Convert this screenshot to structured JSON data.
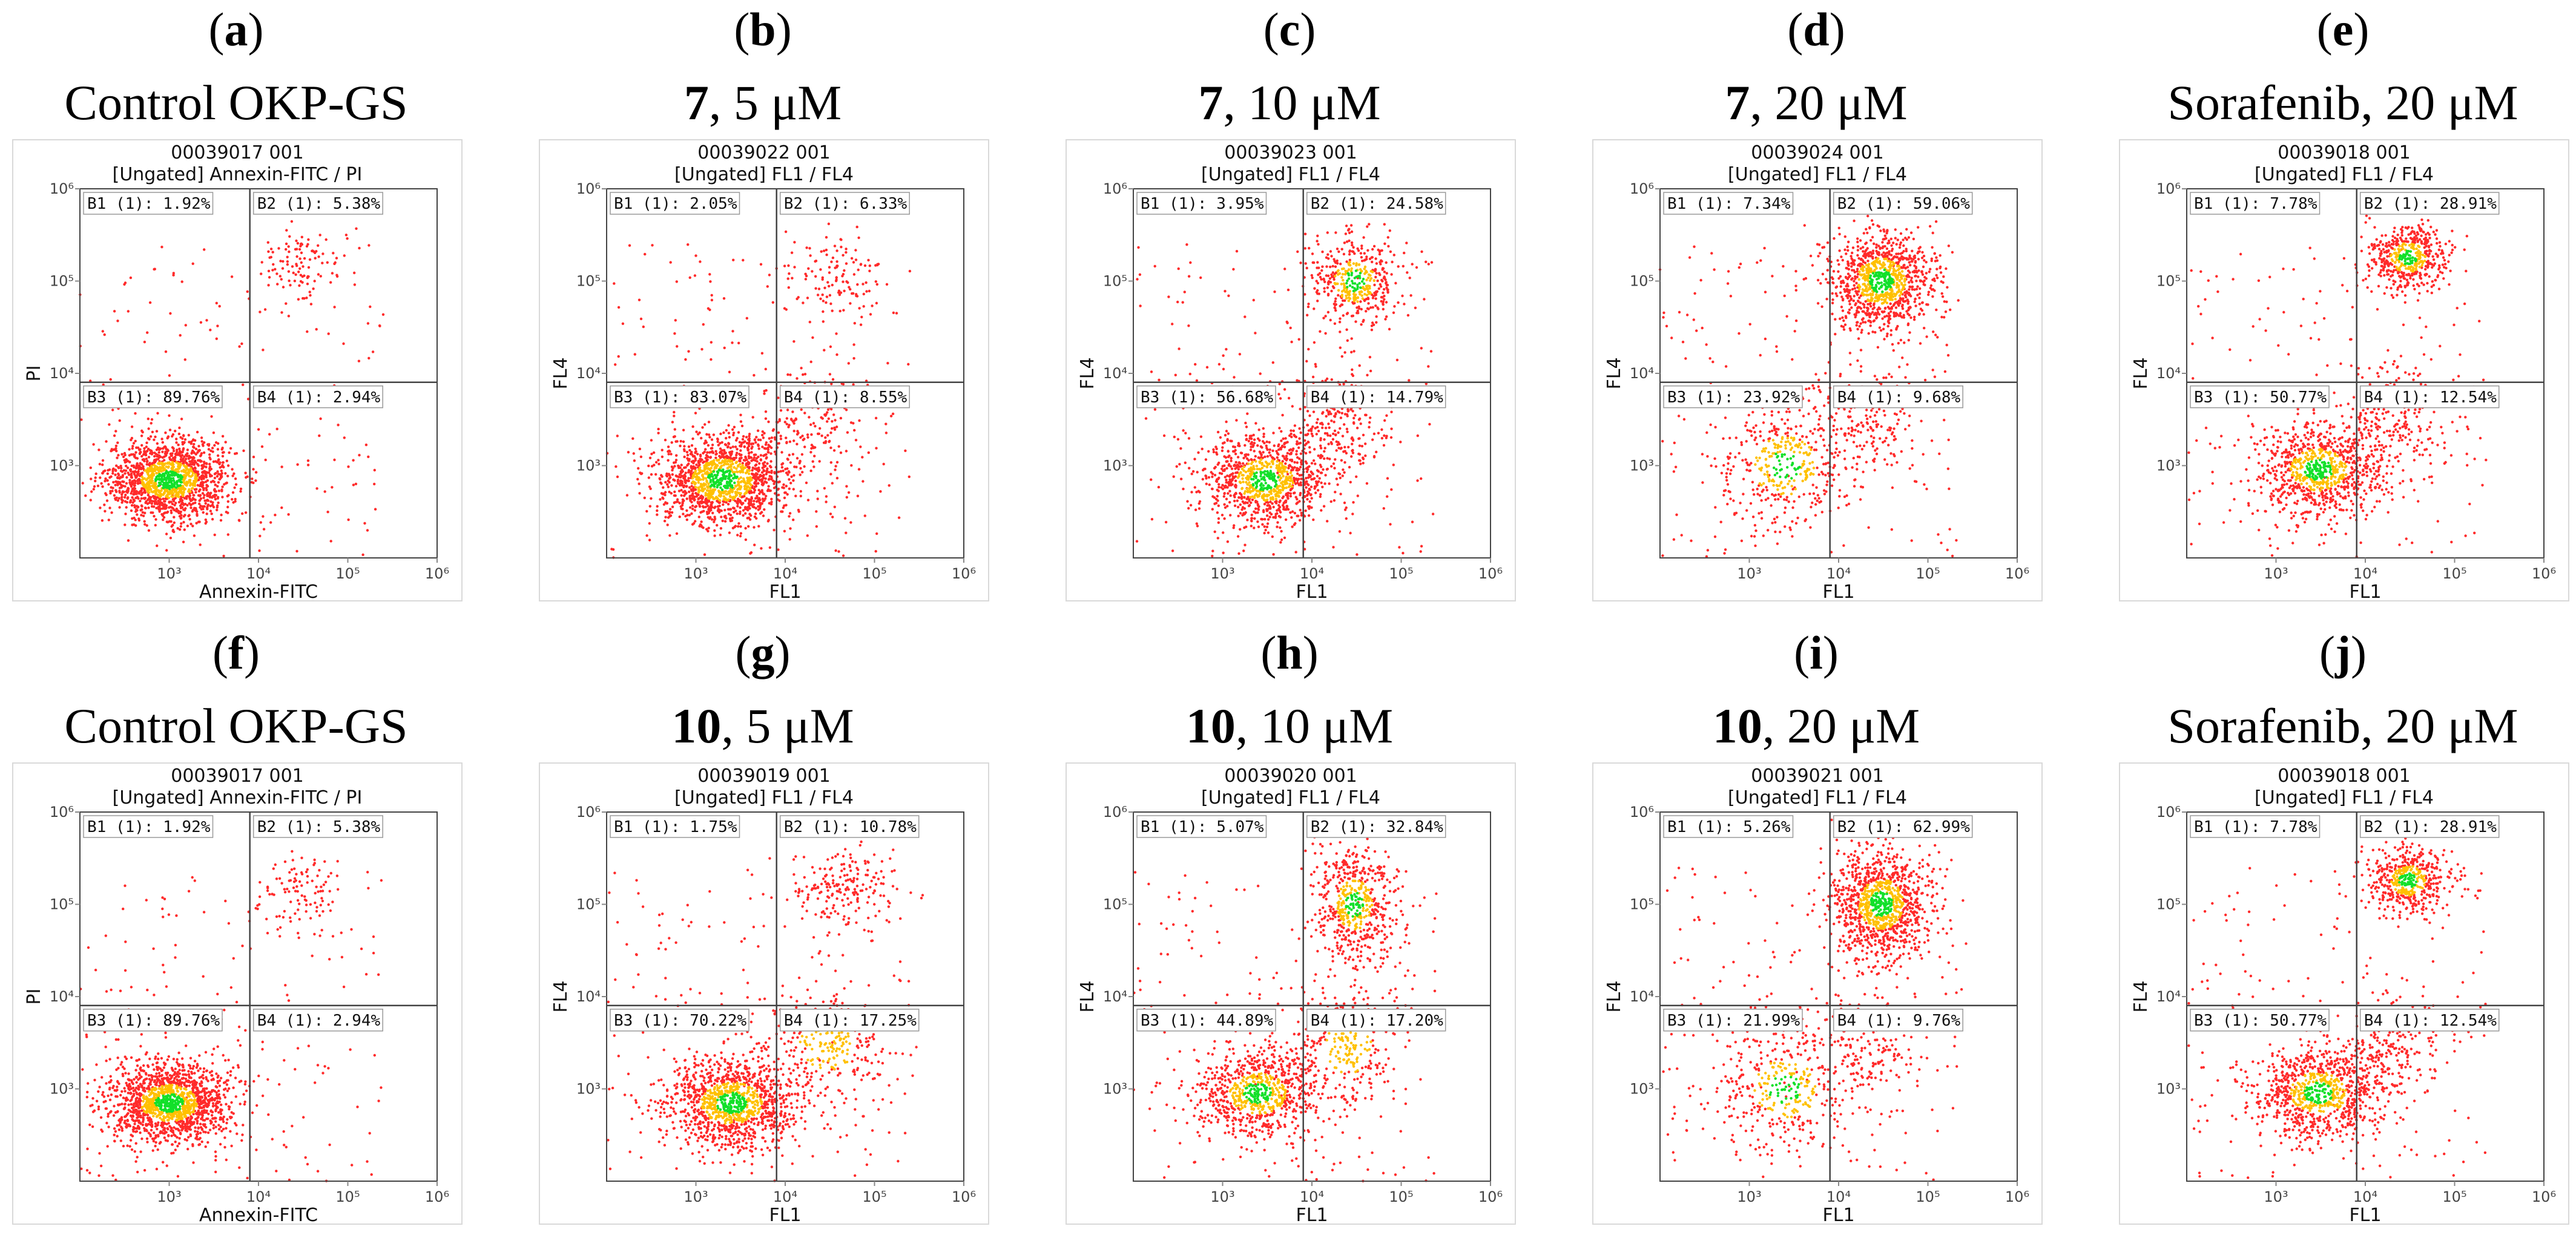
{
  "colors": {
    "low": "#ff2a2a",
    "mid": "#ffc000",
    "high": "#12e02a",
    "line": "#444444"
  },
  "panels": [
    {
      "tag": "a",
      "subtitle_bold": "",
      "subtitle": "Control OKP-GS",
      "sample": "00039017 001",
      "gate_line": "[Ungated] Annexin-FITC / PI",
      "xlabel": "Annexin-FITC",
      "ylabel": "PI",
      "quadrants": {
        "B1": "B1 (1): 1.92%",
        "B2": "B2 (1): 5.38%",
        "B3": "B3 (1): 89.76%",
        "B4": "B4 (1): 2.94%"
      }
    },
    {
      "tag": "b",
      "subtitle_bold": "7",
      "subtitle": ", 5 μM",
      "sample": "00039022 001",
      "gate_line": "[Ungated] FL1 / FL4",
      "xlabel": "FL1",
      "ylabel": "FL4",
      "quadrants": {
        "B1": "B1 (1): 2.05%",
        "B2": "B2 (1): 6.33%",
        "B3": "B3 (1): 83.07%",
        "B4": "B4 (1): 8.55%"
      }
    },
    {
      "tag": "c",
      "subtitle_bold": "7",
      "subtitle": ", 10 μM",
      "sample": "00039023 001",
      "gate_line": "[Ungated] FL1 / FL4",
      "xlabel": "FL1",
      "ylabel": "FL4",
      "quadrants": {
        "B1": "B1 (1): 3.95%",
        "B2": "B2 (1): 24.58%",
        "B3": "B3 (1): 56.68%",
        "B4": "B4 (1): 14.79%"
      }
    },
    {
      "tag": "d",
      "subtitle_bold": "7",
      "subtitle": ", 20 μM",
      "sample": "00039024 001",
      "gate_line": "[Ungated] FL1 / FL4",
      "xlabel": "FL1",
      "ylabel": "FL4",
      "quadrants": {
        "B1": "B1 (1): 7.34%",
        "B2": "B2 (1): 59.06%",
        "B3": "B3 (1): 23.92%",
        "B4": "B4 (1): 9.68%"
      }
    },
    {
      "tag": "e",
      "subtitle_bold": "",
      "subtitle": "Sorafenib, 20 μM",
      "sample": "00039018 001",
      "gate_line": "[Ungated] FL1 / FL4",
      "xlabel": "FL1",
      "ylabel": "FL4",
      "quadrants": {
        "B1": "B1 (1): 7.78%",
        "B2": "B2 (1): 28.91%",
        "B3": "B3 (1): 50.77%",
        "B4": "B4 (1): 12.54%"
      }
    },
    {
      "tag": "f",
      "subtitle_bold": "",
      "subtitle": "Control OKP-GS",
      "sample": "00039017 001",
      "gate_line": "[Ungated] Annexin-FITC / PI",
      "xlabel": "Annexin-FITC",
      "ylabel": "PI",
      "quadrants": {
        "B1": "B1 (1): 1.92%",
        "B2": "B2 (1): 5.38%",
        "B3": "B3 (1): 89.76%",
        "B4": "B4 (1): 2.94%"
      }
    },
    {
      "tag": "g",
      "subtitle_bold": "10",
      "subtitle": ", 5 μM",
      "sample": "00039019 001",
      "gate_line": "[Ungated] FL1 / FL4",
      "xlabel": "FL1",
      "ylabel": "FL4",
      "quadrants": {
        "B1": "B1 (1): 1.75%",
        "B2": "B2 (1): 10.78%",
        "B3": "B3 (1): 70.22%",
        "B4": "B4 (1): 17.25%"
      }
    },
    {
      "tag": "h",
      "subtitle_bold": "10",
      "subtitle": ", 10 μM",
      "sample": "00039020 001",
      "gate_line": "[Ungated] FL1 / FL4",
      "xlabel": "FL1",
      "ylabel": "FL4",
      "quadrants": {
        "B1": "B1 (1): 5.07%",
        "B2": "B2 (1): 32.84%",
        "B3": "B3 (1): 44.89%",
        "B4": "B4 (1): 17.20%"
      }
    },
    {
      "tag": "i",
      "subtitle_bold": "10",
      "subtitle": ", 20 μM",
      "sample": "00039021 001",
      "gate_line": "[Ungated] FL1 / FL4",
      "xlabel": "FL1",
      "ylabel": "FL4",
      "quadrants": {
        "B1": "B1 (1): 5.26%",
        "B2": "B2 (1): 62.99%",
        "B3": "B3 (1): 21.99%",
        "B4": "B4 (1): 9.76%"
      }
    },
    {
      "tag": "j",
      "subtitle_bold": "",
      "subtitle": "Sorafenib, 20 μM",
      "sample": "00039018 001",
      "gate_line": "[Ungated] FL1 / FL4",
      "xlabel": "FL1",
      "ylabel": "FL4",
      "quadrants": {
        "B1": "B1 (1): 7.78%",
        "B2": "B2 (1): 28.91%",
        "B3": "B3 (1): 50.77%",
        "B4": "B4 (1): 12.54%"
      }
    }
  ],
  "chart_data": [
    {
      "type": "scatter",
      "panel": "a",
      "title": "00039017 001",
      "xlabel": "Annexin-FITC",
      "ylabel": "PI",
      "xscale": "log",
      "yscale": "log",
      "xlim": [
        100,
        1000000
      ],
      "ylim": [
        100,
        1000000
      ],
      "gate": [
        8000,
        8000
      ],
      "x_ticks": [
        "10³",
        "10⁴",
        "10⁵",
        "10⁶"
      ],
      "y_ticks": [
        "10³",
        "10⁴",
        "10⁵",
        "10⁶"
      ],
      "quadrant_percent": {
        "B1": 1.92,
        "B2": 5.38,
        "B3": 89.76,
        "B4": 2.94
      },
      "clusters": [
        {
          "x": 1000,
          "y": 700,
          "weight": 0.9,
          "spread": [
            0.35,
            0.22
          ]
        },
        {
          "x": 30000,
          "y": 150000,
          "weight": 0.06,
          "spread": [
            0.25,
            0.2
          ]
        }
      ]
    },
    {
      "type": "scatter",
      "panel": "b",
      "title": "00039022 001",
      "xlabel": "FL1",
      "ylabel": "FL4",
      "xscale": "log",
      "yscale": "log",
      "xlim": [
        100,
        1000000
      ],
      "ylim": [
        100,
        1000000
      ],
      "gate": [
        8000,
        8000
      ],
      "x_ticks": [
        "10³",
        "10⁴",
        "10⁵",
        "10⁶"
      ],
      "y_ticks": [
        "10³",
        "10⁴",
        "10⁵",
        "10⁶"
      ],
      "quadrant_percent": {
        "B1": 2.05,
        "B2": 6.33,
        "B3": 83.07,
        "B4": 8.55
      },
      "clusters": [
        {
          "x": 2000,
          "y": 700,
          "weight": 0.84,
          "spread": [
            0.38,
            0.25
          ]
        },
        {
          "x": 40000,
          "y": 120000,
          "weight": 0.07,
          "spread": [
            0.3,
            0.25
          ]
        },
        {
          "x": 20000,
          "y": 3000,
          "weight": 0.09,
          "spread": [
            0.3,
            0.3
          ]
        }
      ]
    },
    {
      "type": "scatter",
      "panel": "c",
      "title": "00039023 001",
      "xlabel": "FL1",
      "ylabel": "FL4",
      "xscale": "log",
      "yscale": "log",
      "xlim": [
        100,
        1000000
      ],
      "ylim": [
        100,
        1000000
      ],
      "gate": [
        8000,
        8000
      ],
      "x_ticks": [
        "10³",
        "10⁴",
        "10⁵",
        "10⁶"
      ],
      "y_ticks": [
        "10³",
        "10⁴",
        "10⁵",
        "10⁶"
      ],
      "quadrant_percent": {
        "B1": 3.95,
        "B2": 24.58,
        "B3": 56.68,
        "B4": 14.79
      },
      "clusters": [
        {
          "x": 3000,
          "y": 700,
          "weight": 0.58,
          "spread": [
            0.35,
            0.25
          ]
        },
        {
          "x": 30000,
          "y": 100000,
          "weight": 0.25,
          "spread": [
            0.25,
            0.25
          ]
        },
        {
          "x": 20000,
          "y": 3000,
          "weight": 0.15,
          "spread": [
            0.3,
            0.35
          ]
        }
      ]
    },
    {
      "type": "scatter",
      "panel": "d",
      "title": "00039024 001",
      "xlabel": "FL1",
      "ylabel": "FL4",
      "xscale": "log",
      "yscale": "log",
      "xlim": [
        100,
        1000000
      ],
      "ylim": [
        100,
        1000000
      ],
      "gate": [
        8000,
        8000
      ],
      "x_ticks": [
        "10³",
        "10⁴",
        "10⁵",
        "10⁶"
      ],
      "y_ticks": [
        "10³",
        "10⁴",
        "10⁵",
        "10⁶"
      ],
      "quadrant_percent": {
        "B1": 7.34,
        "B2": 59.06,
        "B3": 23.92,
        "B4": 9.68
      },
      "clusters": [
        {
          "x": 30000,
          "y": 100000,
          "weight": 0.6,
          "spread": [
            0.3,
            0.28
          ]
        },
        {
          "x": 2500,
          "y": 1000,
          "weight": 0.25,
          "spread": [
            0.4,
            0.35
          ]
        },
        {
          "x": 20000,
          "y": 3000,
          "weight": 0.1,
          "spread": [
            0.3,
            0.3
          ]
        }
      ]
    },
    {
      "type": "scatter",
      "panel": "e",
      "title": "00039018 001",
      "xlabel": "FL1",
      "ylabel": "FL4",
      "xscale": "log",
      "yscale": "log",
      "xlim": [
        100,
        1000000
      ],
      "ylim": [
        100,
        1000000
      ],
      "gate": [
        8000,
        8000
      ],
      "x_ticks": [
        "10³",
        "10⁴",
        "10⁵",
        "10⁶"
      ],
      "y_ticks": [
        "10³",
        "10⁴",
        "10⁵",
        "10⁶"
      ],
      "quadrant_percent": {
        "B1": 7.78,
        "B2": 28.91,
        "B3": 50.77,
        "B4": 12.54
      },
      "clusters": [
        {
          "x": 3000,
          "y": 900,
          "weight": 0.52,
          "spread": [
            0.35,
            0.25
          ]
        },
        {
          "x": 30000,
          "y": 180000,
          "weight": 0.29,
          "spread": [
            0.22,
            0.18
          ]
        },
        {
          "x": 20000,
          "y": 3000,
          "weight": 0.13,
          "spread": [
            0.3,
            0.3
          ]
        }
      ]
    },
    {
      "type": "scatter",
      "panel": "f",
      "title": "00039017 001",
      "xlabel": "Annexin-FITC",
      "ylabel": "PI",
      "xscale": "log",
      "yscale": "log",
      "xlim": [
        100,
        1000000
      ],
      "ylim": [
        100,
        1000000
      ],
      "gate": [
        8000,
        8000
      ],
      "x_ticks": [
        "10³",
        "10⁴",
        "10⁵",
        "10⁶"
      ],
      "y_ticks": [
        "10³",
        "10⁴",
        "10⁵",
        "10⁶"
      ],
      "quadrant_percent": {
        "B1": 1.92,
        "B2": 5.38,
        "B3": 89.76,
        "B4": 2.94
      },
      "clusters": [
        {
          "x": 1000,
          "y": 700,
          "weight": 0.9,
          "spread": [
            0.35,
            0.22
          ]
        },
        {
          "x": 30000,
          "y": 150000,
          "weight": 0.06,
          "spread": [
            0.25,
            0.2
          ]
        }
      ]
    },
    {
      "type": "scatter",
      "panel": "g",
      "title": "00039019 001",
      "xlabel": "FL1",
      "ylabel": "FL4",
      "xscale": "log",
      "yscale": "log",
      "xlim": [
        100,
        1000000
      ],
      "ylim": [
        100,
        1000000
      ],
      "gate": [
        8000,
        8000
      ],
      "x_ticks": [
        "10³",
        "10⁴",
        "10⁵",
        "10⁶"
      ],
      "y_ticks": [
        "10³",
        "10⁴",
        "10⁵",
        "10⁶"
      ],
      "quadrant_percent": {
        "B1": 1.75,
        "B2": 10.78,
        "B3": 70.22,
        "B4": 17.25
      },
      "clusters": [
        {
          "x": 2500,
          "y": 700,
          "weight": 0.7,
          "spread": [
            0.38,
            0.25
          ]
        },
        {
          "x": 50000,
          "y": 150000,
          "weight": 0.11,
          "spread": [
            0.3,
            0.22
          ]
        },
        {
          "x": 30000,
          "y": 3000,
          "weight": 0.17,
          "spread": [
            0.35,
            0.3
          ]
        }
      ]
    },
    {
      "type": "scatter",
      "panel": "h",
      "title": "00039020 001",
      "xlabel": "FL1",
      "ylabel": "FL4",
      "xscale": "log",
      "yscale": "log",
      "xlim": [
        100,
        1000000
      ],
      "ylim": [
        100,
        1000000
      ],
      "gate": [
        8000,
        8000
      ],
      "x_ticks": [
        "10³",
        "10⁴",
        "10⁵",
        "10⁶"
      ],
      "y_ticks": [
        "10³",
        "10⁴",
        "10⁵",
        "10⁶"
      ],
      "quadrant_percent": {
        "B1": 5.07,
        "B2": 32.84,
        "B3": 44.89,
        "B4": 17.2
      },
      "clusters": [
        {
          "x": 2500,
          "y": 900,
          "weight": 0.45,
          "spread": [
            0.35,
            0.25
          ]
        },
        {
          "x": 30000,
          "y": 100000,
          "weight": 0.33,
          "spread": [
            0.22,
            0.3
          ]
        },
        {
          "x": 25000,
          "y": 3000,
          "weight": 0.17,
          "spread": [
            0.3,
            0.35
          ]
        }
      ]
    },
    {
      "type": "scatter",
      "panel": "i",
      "title": "00039021 001",
      "xlabel": "FL1",
      "ylabel": "FL4",
      "xscale": "log",
      "yscale": "log",
      "xlim": [
        100,
        1000000
      ],
      "ylim": [
        100,
        1000000
      ],
      "gate": [
        8000,
        8000
      ],
      "x_ticks": [
        "10³",
        "10⁴",
        "10⁵",
        "10⁶"
      ],
      "y_ticks": [
        "10³",
        "10⁴",
        "10⁵",
        "10⁶"
      ],
      "quadrant_percent": {
        "B1": 5.26,
        "B2": 62.99,
        "B3": 21.99,
        "B4": 9.76
      },
      "clusters": [
        {
          "x": 30000,
          "y": 100000,
          "weight": 0.63,
          "spread": [
            0.28,
            0.3
          ]
        },
        {
          "x": 2500,
          "y": 1000,
          "weight": 0.22,
          "spread": [
            0.4,
            0.35
          ]
        },
        {
          "x": 20000,
          "y": 3000,
          "weight": 0.1,
          "spread": [
            0.3,
            0.3
          ]
        }
      ]
    },
    {
      "type": "scatter",
      "panel": "j",
      "title": "00039018 001",
      "xlabel": "FL1",
      "ylabel": "FL4",
      "xscale": "log",
      "yscale": "log",
      "xlim": [
        100,
        1000000
      ],
      "ylim": [
        100,
        1000000
      ],
      "gate": [
        8000,
        8000
      ],
      "x_ticks": [
        "10³",
        "10⁴",
        "10⁵",
        "10⁶"
      ],
      "y_ticks": [
        "10³",
        "10⁴",
        "10⁵",
        "10⁶"
      ],
      "quadrant_percent": {
        "B1": 7.78,
        "B2": 28.91,
        "B3": 50.77,
        "B4": 12.54
      },
      "clusters": [
        {
          "x": 3000,
          "y": 900,
          "weight": 0.52,
          "spread": [
            0.35,
            0.25
          ]
        },
        {
          "x": 30000,
          "y": 180000,
          "weight": 0.29,
          "spread": [
            0.22,
            0.18
          ]
        },
        {
          "x": 20000,
          "y": 3000,
          "weight": 0.13,
          "spread": [
            0.3,
            0.3
          ]
        }
      ]
    }
  ]
}
